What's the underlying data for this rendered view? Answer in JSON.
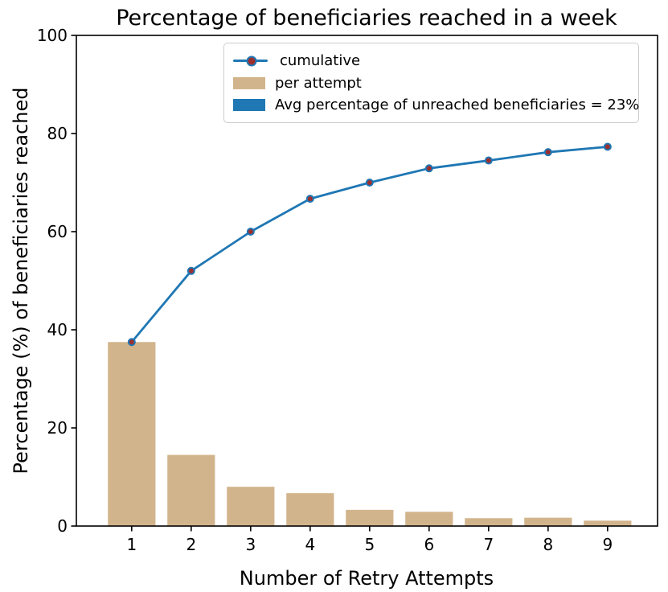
{
  "chart_data": {
    "type": "combo",
    "title": "Percentage of beneficiaries reached in a week",
    "xlabel": "Number of Retry Attempts",
    "ylabel": "Percentage (%) of beneficiaries reached",
    "categories": [
      1,
      2,
      3,
      4,
      5,
      6,
      7,
      8,
      9
    ],
    "series": [
      {
        "name": "cumulative",
        "type": "line",
        "values": [
          37.5,
          52.0,
          60.0,
          66.7,
          70.0,
          72.9,
          74.5,
          76.2,
          77.3
        ],
        "color": "#1f77b4",
        "marker_color": "#9c2f2f"
      },
      {
        "name": "per attempt",
        "type": "bar",
        "values": [
          37.5,
          14.5,
          8.0,
          6.7,
          3.3,
          2.9,
          1.6,
          1.7,
          1.1
        ],
        "color": "#d2b48c"
      }
    ],
    "legend": [
      {
        "label": "cumulative",
        "swatch": "line-marker"
      },
      {
        "label": "per attempt",
        "swatch": "patch",
        "color": "#d2b48c"
      },
      {
        "label": "Avg percentage of unreached beneficiaries = 23%",
        "swatch": "patch",
        "color": "#1f77b4"
      }
    ],
    "avg_unreached_percent": 23,
    "x_ticks": [
      "1",
      "2",
      "3",
      "4",
      "5",
      "6",
      "7",
      "8",
      "9"
    ],
    "y_ticks": [
      "0",
      "20",
      "40",
      "60",
      "80",
      "100"
    ],
    "y_tick_values": [
      0,
      20,
      40,
      60,
      80,
      100
    ],
    "xlim": [
      0.07,
      9.84
    ],
    "ylim": [
      0,
      100
    ],
    "bar_width": 0.8,
    "grid": false,
    "legend_position": "upper center",
    "colors": {
      "line": "#1f77b4",
      "marker": "#9c2f2f",
      "bar": "#d2b48c",
      "spine": "#000000",
      "legend_border": "#cccccc",
      "text": "#000000",
      "background": "#ffffff"
    }
  }
}
